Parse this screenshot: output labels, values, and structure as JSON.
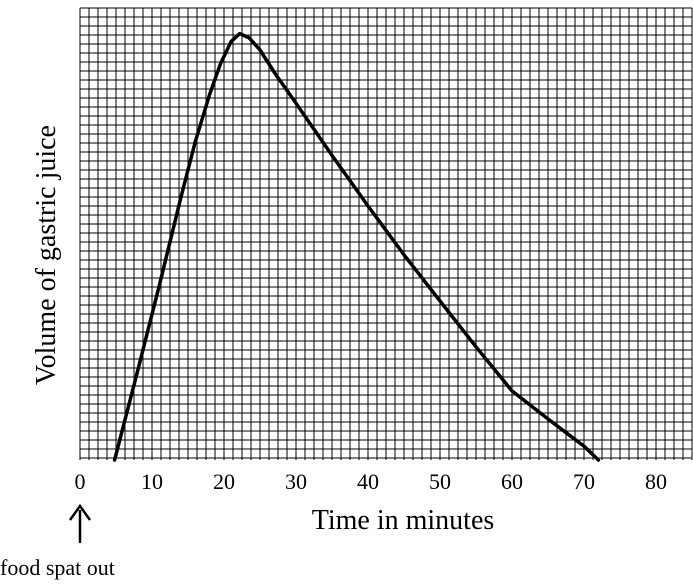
{
  "chart_data": {
    "type": "line",
    "title": "",
    "xlabel": "Time in minutes",
    "ylabel": "Volume of gastric juice",
    "xlim": [
      0,
      85
    ],
    "ylim": [
      0,
      100
    ],
    "x_ticks": [
      0,
      10,
      20,
      30,
      40,
      50,
      60,
      70,
      80
    ],
    "y_ticks": [],
    "grid": true,
    "legend": "none",
    "series": [
      {
        "x": [
          4.8,
          8,
          11,
          14,
          16,
          18,
          19.5,
          21,
          22.2,
          23.5,
          25,
          27,
          30,
          35,
          40,
          45,
          50,
          55,
          60,
          65,
          70,
          72
        ],
        "y": [
          0,
          20.6,
          40.3,
          60.7,
          73.6,
          84.6,
          91.7,
          96.9,
          98.7,
          97.7,
          94.9,
          89.7,
          82.6,
          70.5,
          58.8,
          47.5,
          36.8,
          26.2,
          16.0,
          9.5,
          3.2,
          0
        ]
      }
    ],
    "annotations": [
      {
        "text": "food spat out",
        "x": 0,
        "arrow": "up"
      }
    ]
  }
}
